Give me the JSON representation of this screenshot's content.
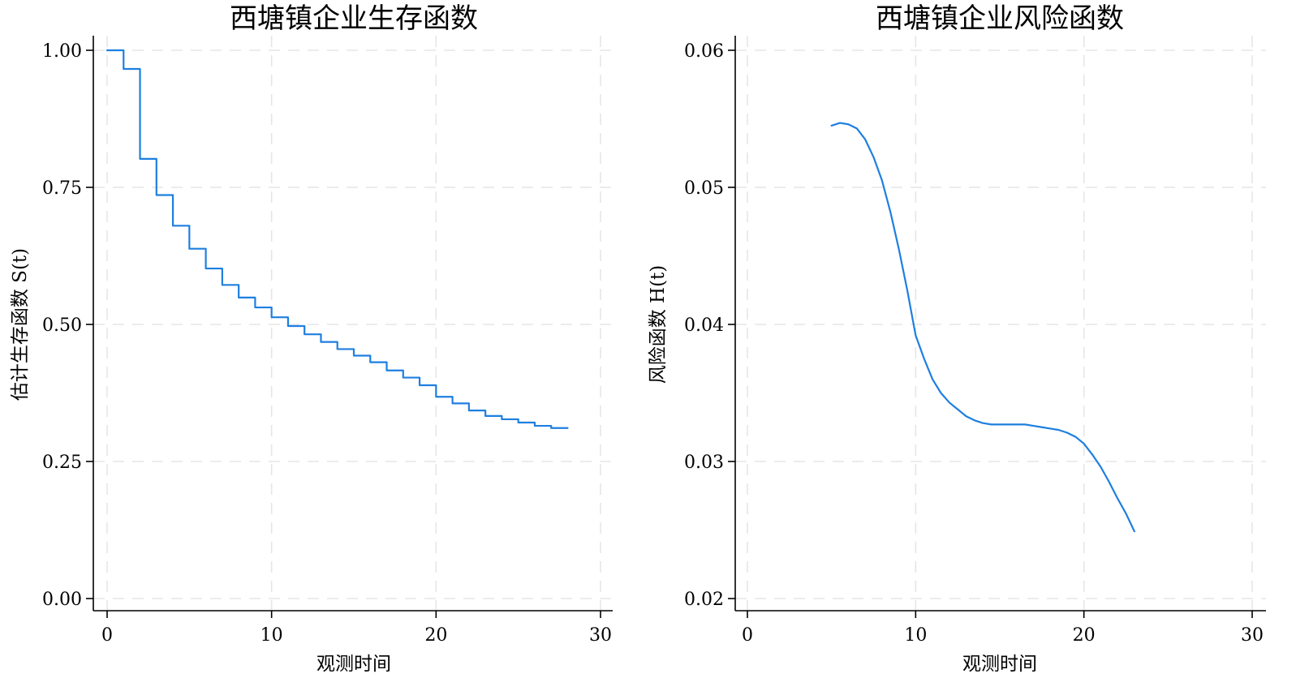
{
  "chart_data": [
    {
      "type": "line",
      "step": true,
      "title": "西塘镇企业生存函数",
      "xlabel": "观测时间",
      "ylabel": "估计生存函数 S(t)",
      "xlim": [
        0,
        30
      ],
      "ylim": [
        0,
        1
      ],
      "x_ticks": [
        0,
        10,
        20,
        30
      ],
      "x_tick_labels": [
        "0",
        "10",
        "20",
        "30"
      ],
      "y_ticks": [
        0,
        0.25,
        0.5,
        0.75,
        1.0
      ],
      "y_tick_labels": [
        "0.00",
        "0.25",
        "0.50",
        "0.75",
        "1.00"
      ],
      "grid": true,
      "color": "#1e7fe0",
      "x": [
        0,
        1,
        2,
        3,
        4,
        5,
        6,
        7,
        8,
        9,
        10,
        11,
        12,
        13,
        14,
        15,
        16,
        17,
        18,
        19,
        20,
        21,
        22,
        23,
        24,
        25,
        26,
        27,
        28
      ],
      "values": [
        1.0,
        0.966,
        0.802,
        0.736,
        0.68,
        0.638,
        0.602,
        0.572,
        0.549,
        0.531,
        0.513,
        0.497,
        0.482,
        0.468,
        0.455,
        0.443,
        0.431,
        0.416,
        0.403,
        0.389,
        0.368,
        0.356,
        0.343,
        0.333,
        0.327,
        0.321,
        0.315,
        0.311,
        0.311
      ]
    },
    {
      "type": "line",
      "title": "西塘镇企业风险函数",
      "xlabel": "观测时间",
      "ylabel": "风险函数 H(t)",
      "xlim": [
        0,
        30
      ],
      "ylim": [
        0.02,
        0.06
      ],
      "x_ticks": [
        0,
        10,
        20,
        30
      ],
      "x_tick_labels": [
        "0",
        "10",
        "20",
        "30"
      ],
      "y_ticks": [
        0.02,
        0.03,
        0.04,
        0.05,
        0.06
      ],
      "y_tick_labels": [
        "0.02",
        "0.03",
        "0.04",
        "0.05",
        "0.06"
      ],
      "grid": true,
      "color": "#1e7fe0",
      "x": [
        5.0,
        5.5,
        6.0,
        6.5,
        7.0,
        7.5,
        8.0,
        8.5,
        9.0,
        9.5,
        10.0,
        10.5,
        11.0,
        11.5,
        12.0,
        12.5,
        13.0,
        13.5,
        14.0,
        14.5,
        15.0,
        15.5,
        16.0,
        16.5,
        17.0,
        17.5,
        18.0,
        18.5,
        19.0,
        19.5,
        20.0,
        20.5,
        21.0,
        21.5,
        22.0,
        22.5,
        23.0
      ],
      "values": [
        0.0545,
        0.0547,
        0.0546,
        0.0543,
        0.0535,
        0.0522,
        0.0505,
        0.0482,
        0.0455,
        0.0425,
        0.0392,
        0.0375,
        0.036,
        0.035,
        0.0343,
        0.0338,
        0.0333,
        0.033,
        0.0328,
        0.0327,
        0.0327,
        0.0327,
        0.0327,
        0.0327,
        0.0326,
        0.0325,
        0.0324,
        0.0323,
        0.0321,
        0.0318,
        0.0313,
        0.0305,
        0.0296,
        0.0285,
        0.0273,
        0.0262,
        0.0249
      ]
    }
  ]
}
